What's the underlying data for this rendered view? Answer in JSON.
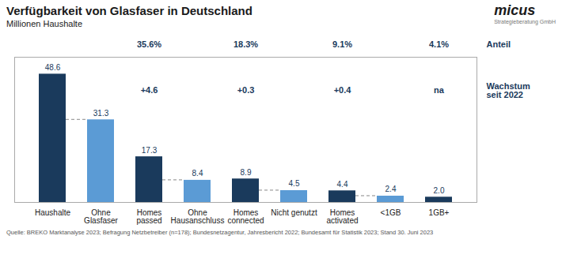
{
  "chart_data": {
    "type": "bar",
    "title": "Verfügbarkeit von Glasfaser in Deutschland",
    "subtitle": "Millionen Haushalte",
    "source": "Quelle: BREKO Marktanalyse 2023; Befragung Netzbetreiber (n=178); Bundesnetzagentur, Jahresbericht 2022; Bundesamt für Statistik 2023; Stand 30. Juni 2023",
    "categories": [
      "Haushalte",
      "Ohne\nGlasfaser",
      "Homes\npassed",
      "Ohne\nHausanschluss",
      "Homes\nconnected",
      "Nicht genutzt",
      "Homes\nactivated",
      "<1GB",
      "1GB+"
    ],
    "values": [
      48.6,
      31.3,
      17.3,
      8.4,
      8.9,
      4.5,
      4.4,
      2.4,
      2.0
    ],
    "value_labels": [
      "48.6",
      "31.3",
      "17.3",
      "8.4",
      "8.9",
      "4.5",
      "4.4",
      "2.4",
      "2.0"
    ],
    "colors": [
      "#1a3a5c",
      "#5b9bd5",
      "#1a3a5c",
      "#5b9bd5",
      "#1a3a5c",
      "#5b9bd5",
      "#1a3a5c",
      "#5b9bd5",
      "#1a3a5c"
    ],
    "data_labels": true,
    "ylim": [
      0,
      55
    ],
    "tick_labels": "x",
    "grid": false,
    "connectors": [
      [
        "Haushalte",
        "Ohne\nGlasfaser"
      ],
      [
        "Homes\npassed",
        "Ohne\nHausanschluss"
      ],
      [
        "Homes\nconnected",
        "Nicht genutzt"
      ],
      [
        "Homes\nactivated",
        "<1GB"
      ]
    ],
    "row_annotations": [
      {
        "label": "Anteil",
        "categories": [
          "Homes\npassed",
          "Homes\nconnected",
          "Homes\nactivated",
          "1GB+"
        ],
        "texts": [
          "35.6%",
          "18.3%",
          "9.1%",
          "4.1%"
        ]
      },
      {
        "label": "Wachstum\nseit 2022",
        "categories": [
          "Homes\npassed",
          "Homes\nconnected",
          "Homes\nactivated",
          "1GB+"
        ],
        "texts": [
          "+4.6",
          "+0.3",
          "+0.4",
          "na"
        ]
      }
    ],
    "annotations": [
      "micus",
      "Strategieberatung GmbH"
    ]
  }
}
